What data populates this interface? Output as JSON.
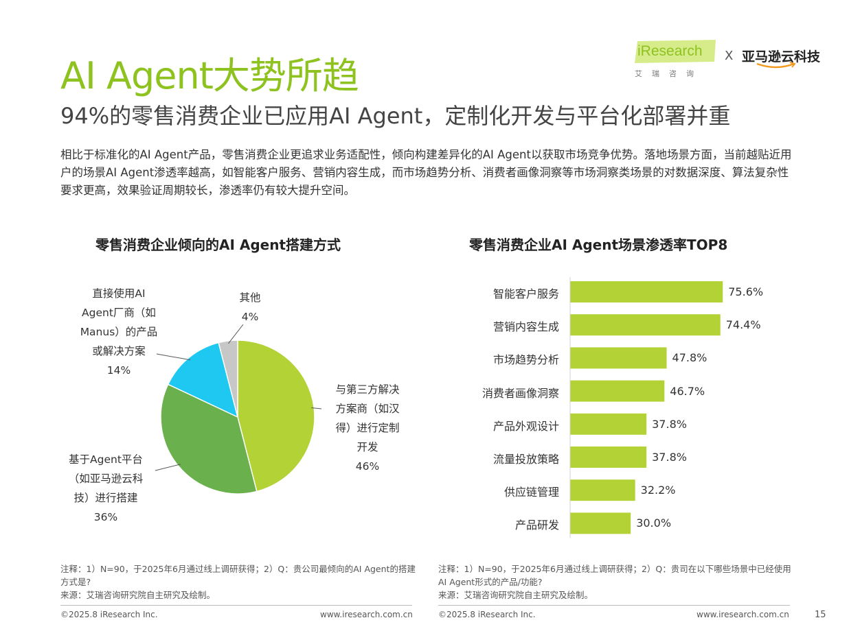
{
  "header": {
    "title": "AI Agent大势所趋",
    "subtitle": "94%的零售消费企业已应用AI Agent，定制化开发与平台化部署并重",
    "description": "相比于标准化的AI Agent产品，零售消费企业更追求业务适配性，倾向构建差异化的AI Agent以获取市场竞争优势。落地场景方面，当前越贴近用户的场景AI Agent渗透率越高，如智能客户服务、营销内容生成，而市场趋势分析、消费者画像洞察等市场洞察类场景的对数据深度、算法复杂性要求更高，效果验证周期较长，渗透率仍有较大提升空间。"
  },
  "logo": {
    "iresearch": "iResearch",
    "iresearch_cn": "艾瑞咨询",
    "x": "X",
    "partner": "亚马逊云科技"
  },
  "colors": {
    "accent": "#8dc21f",
    "pie_green_light": "#b2d235",
    "pie_green_dark": "#6ab04c",
    "pie_blue": "#1fc8f0",
    "pie_grey": "#c7c7c7"
  },
  "chart_data": [
    {
      "type": "pie",
      "title": "零售消费企业倾向的AI Agent搭建方式",
      "slices": [
        {
          "label_lines": [
            "与第三方解决",
            "方案商（如汉",
            "得）进行定制",
            "开发"
          ],
          "value": 46,
          "value_label": "46%",
          "color": "#b2d235"
        },
        {
          "label_lines": [
            "基于Agent平台",
            "（如亚马逊云科",
            "技）进行搭建"
          ],
          "value": 36,
          "value_label": "36%",
          "color": "#6ab04c"
        },
        {
          "label_lines": [
            "直接使用AI",
            "Agent厂商（如",
            "Manus）的产品",
            "或解决方案"
          ],
          "value": 14,
          "value_label": "14%",
          "color": "#1fc8f0"
        },
        {
          "label_lines": [
            "其他"
          ],
          "value": 4,
          "value_label": "4%",
          "color": "#c7c7c7"
        }
      ],
      "note": "注释：1）N=90，于2025年6月通过线上调研获得；2）Q：贵公司最倾向的AI Agent的搭建方式是?",
      "source": "来源：艾瑞咨询研究院自主研究及绘制。"
    },
    {
      "type": "bar",
      "orientation": "horizontal",
      "title": "零售消费企业AI Agent场景渗透率TOP8",
      "categories": [
        "智能客户服务",
        "营销内容生成",
        "市场趋势分析",
        "消费者画像洞察",
        "产品外观设计",
        "流量投放策略",
        "供应链管理",
        "产品研发"
      ],
      "values": [
        75.6,
        74.4,
        47.8,
        46.7,
        37.8,
        37.8,
        32.2,
        30.0
      ],
      "value_labels": [
        "75.6%",
        "74.4%",
        "47.8%",
        "46.7%",
        "37.8%",
        "37.8%",
        "32.2%",
        "30.0%"
      ],
      "color": "#b2d235",
      "note": "注释：1）N=90，于2025年6月通过线上调研获得；2）Q：贵司在以下哪些场景中已经使用AI Agent形式的产品/功能?",
      "source": "来源：艾瑞咨询研究院自主研究及绘制。"
    }
  ],
  "footer": {
    "left_copyright": "©2025.8 iResearch Inc.",
    "left_url": "www.iresearch.com.cn",
    "right_copyright": "©2025.8 iResearch Inc.",
    "right_url": "www.iresearch.com.cn",
    "page_number": "15"
  }
}
